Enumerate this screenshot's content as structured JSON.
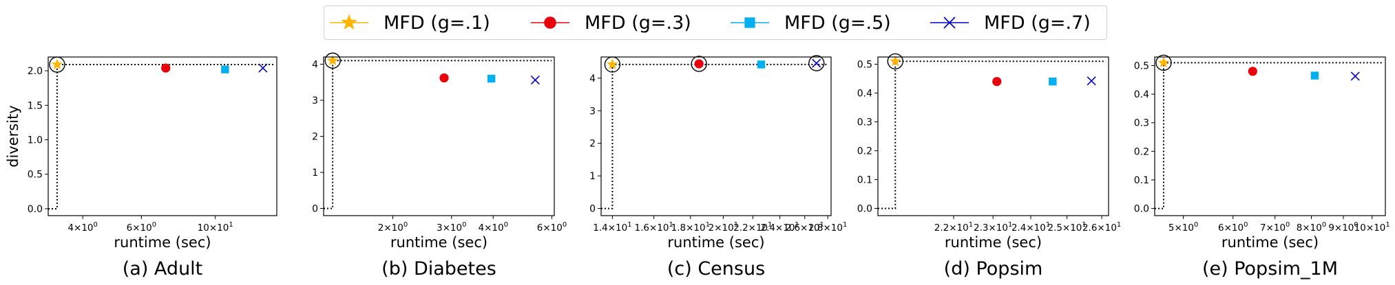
{
  "legend": [
    {
      "label": "MFD (g=.1)",
      "marker": "star",
      "color": "#FFB400"
    },
    {
      "label": "MFD (g=.3)",
      "marker": "circle",
      "color": "#E8000B"
    },
    {
      "label": "MFD (g=.5)",
      "marker": "square",
      "color": "#00B0F0"
    },
    {
      "label": "MFD (g=.7)",
      "marker": "x",
      "color": "#0000CC"
    }
  ],
  "chart_data": [
    {
      "type": "scatter",
      "title": "(a) Adult",
      "xlabel": "runtime (sec)",
      "ylabel": "diversity",
      "xscale": "log",
      "xlim": [
        3.15,
        15.3
      ],
      "ylim": [
        -0.1,
        2.2
      ],
      "yticks": [
        "0.0",
        "0.5",
        "1.0",
        "1.5",
        "2.0"
      ],
      "ytick_values": [
        0,
        0.5,
        1.0,
        1.5,
        2.0
      ],
      "xticks": [
        {
          "value": 4,
          "base": "4",
          "exp": "0"
        },
        {
          "value": 6,
          "base": "6",
          "exp": "0"
        },
        {
          "value": 10,
          "base": "10",
          "exp": "1"
        }
      ],
      "series": [
        {
          "name": "MFD (g=.1)",
          "x": [
            3.35
          ],
          "y": [
            2.09
          ]
        },
        {
          "name": "MFD (g=.3)",
          "x": [
            7.1
          ],
          "y": [
            2.04
          ]
        },
        {
          "name": "MFD (g=.5)",
          "x": [
            10.7
          ],
          "y": [
            2.02
          ]
        },
        {
          "name": "MFD (g=.7)",
          "x": [
            13.9
          ],
          "y": [
            2.04
          ]
        }
      ],
      "highlight": [
        {
          "x": 3.35,
          "y": 2.09
        }
      ],
      "frontier": {
        "x": 3.35,
        "y": 2.09
      }
    },
    {
      "type": "scatter",
      "title": "(b) Diabetes",
      "xlabel": "runtime (sec)",
      "ylabel": "",
      "xscale": "log",
      "xlim": [
        1.24,
        6.1
      ],
      "ylim": [
        -0.2,
        4.2
      ],
      "yticks": [
        "0",
        "1",
        "2",
        "3",
        "4"
      ],
      "ytick_values": [
        0,
        1,
        2,
        3,
        4
      ],
      "xticks": [
        {
          "value": 2,
          "base": "2",
          "exp": "0"
        },
        {
          "value": 3,
          "base": "3",
          "exp": "0"
        },
        {
          "value": 4,
          "base": "4",
          "exp": "0"
        },
        {
          "value": 6,
          "base": "6",
          "exp": "0"
        }
      ],
      "series": [
        {
          "name": "MFD (g=.1)",
          "x": [
            1.32
          ],
          "y": [
            4.1
          ]
        },
        {
          "name": "MFD (g=.3)",
          "x": [
            2.85
          ],
          "y": [
            3.62
          ]
        },
        {
          "name": "MFD (g=.5)",
          "x": [
            3.95
          ],
          "y": [
            3.6
          ]
        },
        {
          "name": "MFD (g=.7)",
          "x": [
            5.35
          ],
          "y": [
            3.56
          ]
        }
      ],
      "highlight": [
        {
          "x": 1.32,
          "y": 4.1
        }
      ],
      "frontier": {
        "x": 1.32,
        "y": 4.1
      }
    },
    {
      "type": "scatter",
      "title": "(c) Census",
      "xlabel": "runtime (sec)",
      "ylabel": "",
      "xscale": "log",
      "xlim": [
        13.5,
        28.3
      ],
      "ylim": [
        -0.22,
        4.65
      ],
      "yticks": [
        "0",
        "1",
        "2",
        "3",
        "4"
      ],
      "ytick_values": [
        0,
        1,
        2,
        3,
        4
      ],
      "xticks": [
        {
          "value": 14,
          "base": "1.4",
          "exp": "1"
        },
        {
          "value": 16,
          "base": "1.6",
          "exp": "1"
        },
        {
          "value": 18,
          "base": "1.8",
          "exp": "1"
        },
        {
          "value": 20,
          "base": "2",
          "exp": "1"
        },
        {
          "value": 22,
          "base": "2.2",
          "exp": "1"
        },
        {
          "value": 24,
          "base": "2.4",
          "exp": "1"
        },
        {
          "value": 26,
          "base": "2.6",
          "exp": "1"
        },
        {
          "value": 28,
          "base": "2.8",
          "exp": "1"
        }
      ],
      "series": [
        {
          "name": "MFD (g=.1)",
          "x": [
            14.0
          ],
          "y": [
            4.42
          ]
        },
        {
          "name": "MFD (g=.3)",
          "x": [
            18.5
          ],
          "y": [
            4.44
          ]
        },
        {
          "name": "MFD (g=.5)",
          "x": [
            22.6
          ],
          "y": [
            4.42
          ]
        },
        {
          "name": "MFD (g=.7)",
          "x": [
            27.0
          ],
          "y": [
            4.46
          ]
        }
      ],
      "highlight": [
        {
          "x": 14.0,
          "y": 4.42
        },
        {
          "x": 18.5,
          "y": 4.44
        },
        {
          "x": 27.0,
          "y": 4.46
        }
      ],
      "frontier": {
        "x": 14.0,
        "y": 4.42
      }
    },
    {
      "type": "scatter",
      "title": "(d) Popsim",
      "xlabel": "runtime (sec)",
      "ylabel": "",
      "xscale": "log",
      "xlim": [
        20.2,
        26.2
      ],
      "ylim": [
        -0.025,
        0.525
      ],
      "yticks": [
        "0.0",
        "0.1",
        "0.2",
        "0.3",
        "0.4",
        "0.5"
      ],
      "ytick_values": [
        0,
        0.1,
        0.2,
        0.3,
        0.4,
        0.5
      ],
      "xticks": [
        {
          "value": 22,
          "base": "2.2",
          "exp": "1"
        },
        {
          "value": 23,
          "base": "2.3",
          "exp": "1"
        },
        {
          "value": 24,
          "base": "2.4",
          "exp": "1"
        },
        {
          "value": 25,
          "base": "2.5",
          "exp": "1"
        },
        {
          "value": 26,
          "base": "2.6",
          "exp": "1"
        }
      ],
      "series": [
        {
          "name": "MFD (g=.1)",
          "x": [
            20.6
          ],
          "y": [
            0.51
          ]
        },
        {
          "name": "MFD (g=.3)",
          "x": [
            23.1
          ],
          "y": [
            0.44
          ]
        },
        {
          "name": "MFD (g=.5)",
          "x": [
            24.6
          ],
          "y": [
            0.44
          ]
        },
        {
          "name": "MFD (g=.7)",
          "x": [
            25.7
          ],
          "y": [
            0.442
          ]
        }
      ],
      "highlight": [
        {
          "x": 20.6,
          "y": 0.51
        }
      ],
      "frontier": {
        "x": 20.6,
        "y": 0.51
      }
    },
    {
      "type": "scatter",
      "title": "(e) Popsim_1M",
      "xlabel": "runtime (sec)",
      "ylabel": "",
      "xscale": "log",
      "xlim": [
        4.5,
        10.5
      ],
      "ylim": [
        -0.025,
        0.53
      ],
      "yticks": [
        "0.0",
        "0.1",
        "0.2",
        "0.3",
        "0.4",
        "0.5"
      ],
      "ytick_values": [
        0,
        0.1,
        0.2,
        0.3,
        0.4,
        0.5
      ],
      "xticks": [
        {
          "value": 5,
          "base": "5",
          "exp": "0"
        },
        {
          "value": 6,
          "base": "6",
          "exp": "0"
        },
        {
          "value": 7,
          "base": "7",
          "exp": "0"
        },
        {
          "value": 8,
          "base": "8",
          "exp": "0"
        },
        {
          "value": 9,
          "base": "9",
          "exp": "0"
        },
        {
          "value": 10,
          "base": "10",
          "exp": "1"
        }
      ],
      "series": [
        {
          "name": "MFD (g=.1)",
          "x": [
            4.65
          ],
          "y": [
            0.51
          ]
        },
        {
          "name": "MFD (g=.3)",
          "x": [
            6.45
          ],
          "y": [
            0.48
          ]
        },
        {
          "name": "MFD (g=.5)",
          "x": [
            8.1
          ],
          "y": [
            0.465
          ]
        },
        {
          "name": "MFD (g=.7)",
          "x": [
            9.4
          ],
          "y": [
            0.463
          ]
        }
      ],
      "highlight": [
        {
          "x": 4.65,
          "y": 0.51
        }
      ],
      "frontier": {
        "x": 4.65,
        "y": 0.51
      }
    }
  ]
}
